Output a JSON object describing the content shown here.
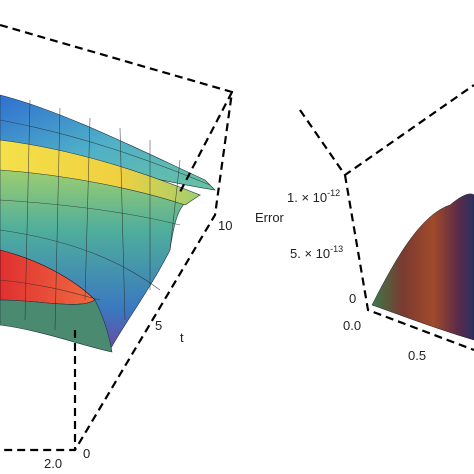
{
  "left_plot": {
    "t_axis": {
      "label": "t",
      "ticks": [
        "10",
        "5",
        "0"
      ]
    },
    "x_axis": {
      "ticks": [
        "2.0"
      ]
    }
  },
  "right_plot": {
    "error_axis": {
      "label": "Error",
      "ticks": [
        {
          "mantissa": "1. × 10",
          "exponent": "-12"
        },
        {
          "mantissa": "5. × 10",
          "exponent": "-13"
        },
        "0"
      ]
    },
    "x_axis": {
      "ticks": [
        "0.0",
        "0.5"
      ]
    }
  }
}
